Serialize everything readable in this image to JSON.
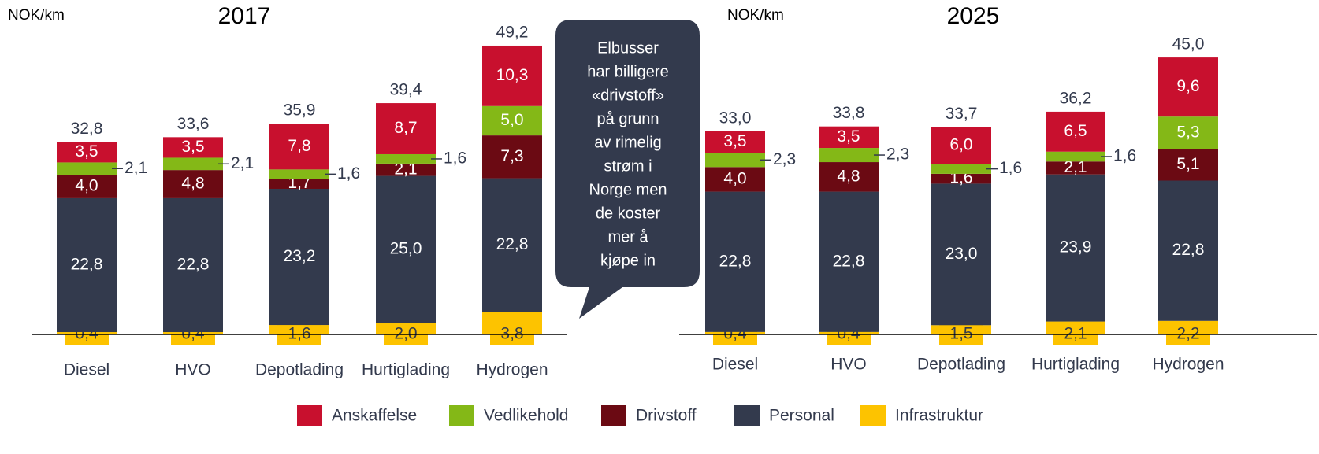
{
  "chart_data": [
    {
      "type": "stacked-bar",
      "title": "2017",
      "unit": "NOK/km",
      "categories": [
        "Diesel",
        "HVO",
        "Depotlading",
        "Hurtiglading",
        "Hydrogen"
      ],
      "ylim": [
        0,
        50
      ],
      "series": [
        {
          "name": "Infrastruktur",
          "color": "#fdc300",
          "values": [
            0.4,
            0.4,
            1.6,
            2.0,
            3.8
          ],
          "value_labels": [
            "0,4",
            "0,4",
            "1,6",
            "2,0",
            "3,8"
          ]
        },
        {
          "name": "Personal",
          "color": "#333a4d",
          "values": [
            22.8,
            22.8,
            23.2,
            25.0,
            22.8
          ],
          "value_labels": [
            "22,8",
            "22,8",
            "23,2",
            "25,0",
            "22,8"
          ]
        },
        {
          "name": "Drivstoff",
          "color": "#6b0a13",
          "values": [
            4.0,
            4.8,
            1.7,
            2.1,
            7.3
          ],
          "value_labels": [
            "4,0",
            "4,8",
            "1,7",
            "2,1",
            "7,3"
          ]
        },
        {
          "name": "Vedlikehold",
          "color": "#84b817",
          "values": [
            2.1,
            2.1,
            1.6,
            1.6,
            5.0
          ],
          "value_labels": [
            "2,1",
            "2,1",
            "1,6",
            "1,6",
            "5,0"
          ]
        },
        {
          "name": "Anskaffelse",
          "color": "#c8102e",
          "values": [
            3.5,
            3.5,
            7.8,
            8.7,
            10.3
          ],
          "value_labels": [
            "3,5",
            "3,5",
            "7,8",
            "8,7",
            "10,3"
          ]
        }
      ],
      "totals": [
        32.8,
        33.6,
        35.9,
        39.4,
        49.2
      ],
      "total_labels": [
        "32,8",
        "33,6",
        "35,9",
        "39,4",
        "49,2"
      ]
    },
    {
      "type": "stacked-bar",
      "title": "2025",
      "unit": "NOK/km",
      "categories": [
        "Diesel",
        "HVO",
        "Depotlading",
        "Hurtiglading",
        "Hydrogen"
      ],
      "ylim": [
        0,
        50
      ],
      "series": [
        {
          "name": "Infrastruktur",
          "color": "#fdc300",
          "values": [
            0.4,
            0.4,
            1.5,
            2.1,
            2.2
          ],
          "value_labels": [
            "0,4",
            "0,4",
            "1,5",
            "2,1",
            "2,2"
          ]
        },
        {
          "name": "Personal",
          "color": "#333a4d",
          "values": [
            22.8,
            22.8,
            23.0,
            23.9,
            22.8
          ],
          "value_labels": [
            "22,8",
            "22,8",
            "23,0",
            "23,9",
            "22,8"
          ]
        },
        {
          "name": "Drivstoff",
          "color": "#6b0a13",
          "values": [
            4.0,
            4.8,
            1.6,
            2.1,
            5.1
          ],
          "value_labels": [
            "4,0",
            "4,8",
            "1,6",
            "2,1",
            "5,1"
          ]
        },
        {
          "name": "Vedlikehold",
          "color": "#84b817",
          "values": [
            2.3,
            2.3,
            1.6,
            1.6,
            5.3
          ],
          "value_labels": [
            "2,3",
            "2,3",
            "1,6",
            "1,6",
            "5,3"
          ]
        },
        {
          "name": "Anskaffelse",
          "color": "#c8102e",
          "values": [
            3.5,
            3.5,
            6.0,
            6.5,
            9.6
          ],
          "value_labels": [
            "3,5",
            "3,5",
            "6,0",
            "6,5",
            "9,6"
          ]
        }
      ],
      "totals": [
        33.0,
        33.8,
        33.7,
        36.2,
        45.0
      ],
      "total_labels": [
        "33,0",
        "33,8",
        "33,7",
        "36,2",
        "45,0"
      ]
    }
  ],
  "callout": [
    "Elbusser",
    "har billigere",
    "«drivstoff»",
    "på grunn",
    "av rimelig",
    "strøm i",
    "Norge men",
    "de koster",
    "mer å",
    "kjøpe in"
  ]
}
